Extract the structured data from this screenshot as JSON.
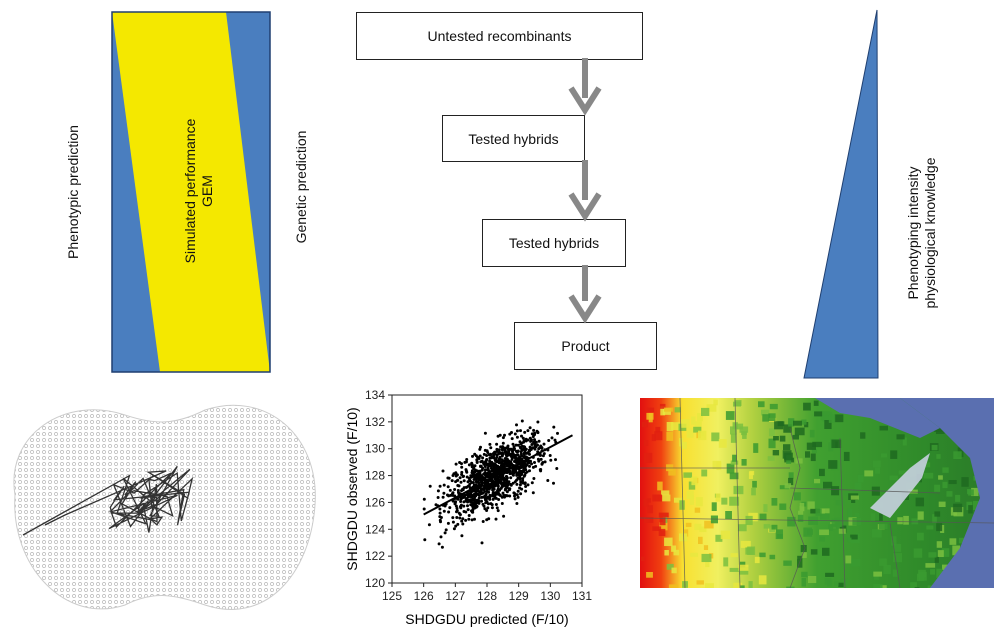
{
  "left_panel": {
    "left_label": "Phenotypic prediction",
    "center_label_line1": "Simulated performance",
    "center_label_line2": "GEM",
    "right_label": "Genetic prediction",
    "colors": {
      "blue": "#4a7ebf",
      "yellow": "#f4e800"
    }
  },
  "flow": {
    "boxes": [
      {
        "label": "Untested recombinants"
      },
      {
        "label": "Tested hybrids"
      },
      {
        "label": "Tested hybrids"
      },
      {
        "label": "Product"
      }
    ],
    "arrow_color": "#888888"
  },
  "right_panel": {
    "label_line1": "Phenotyping intensity",
    "label_line2": "physiological knowledge",
    "color": "#4a7ebf"
  },
  "chart_data": {
    "type": "scatter",
    "xlabel": "SHDGDU predicted (F/10)",
    "ylabel": "SHDGDU observed (F/10)",
    "xlim": [
      125,
      131
    ],
    "ylim": [
      120,
      134
    ],
    "xticks": [
      "125",
      "126",
      "127",
      "128",
      "129",
      "130",
      "131"
    ],
    "yticks": [
      "120",
      "122",
      "124",
      "126",
      "128",
      "130",
      "132",
      "134"
    ],
    "regression_line": {
      "x": [
        126,
        130.7
      ],
      "y": [
        125.1,
        131
      ]
    },
    "point_cloud": {
      "count": 1100,
      "x_center": 128.3,
      "x_sd": 0.8,
      "residual_sd": 1.1
    }
  },
  "network": {
    "description_icon": "network-graph-icon"
  },
  "map": {
    "description_icon": "heatmap-map-icon"
  }
}
